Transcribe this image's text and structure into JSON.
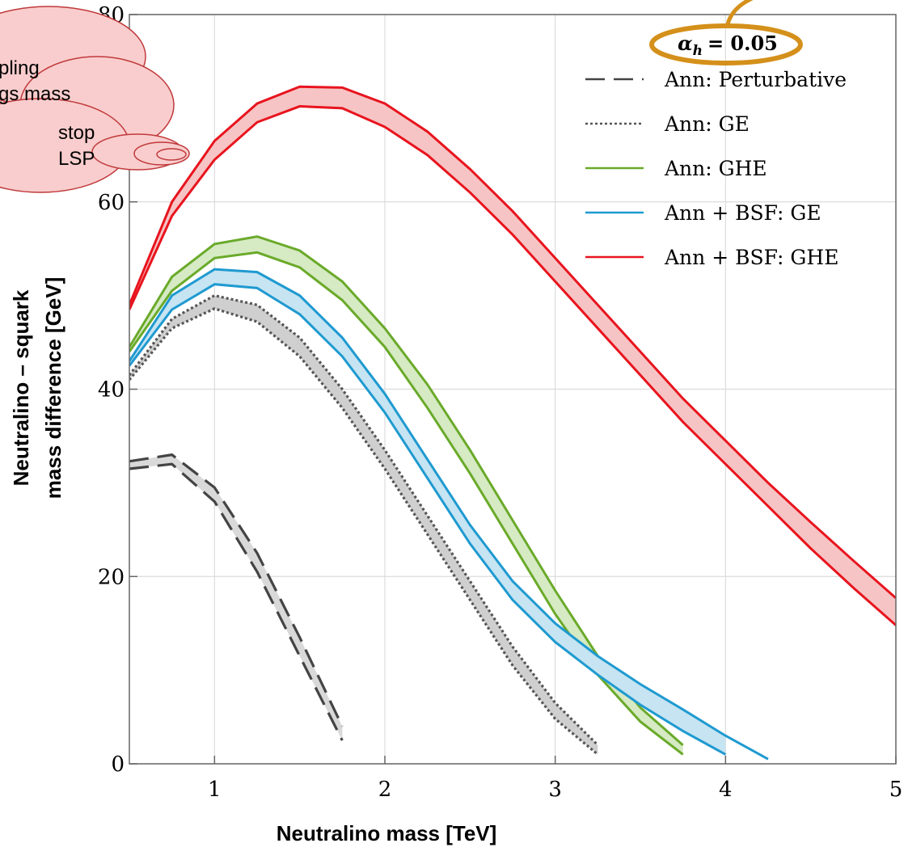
{
  "chart_data": {
    "type": "band",
    "xlabel": "Neutralino mass [TeV]",
    "ylabel": [
      "Neutralino – squark",
      "mass difference [GeV]"
    ],
    "annotation": {
      "symbol": "α",
      "subscript": "h",
      "text": "= 0.05"
    },
    "callout": [
      "pling",
      "gs mass",
      "stop",
      "LSP"
    ],
    "xlim": [
      0.5,
      5
    ],
    "ylim": [
      0,
      80
    ],
    "xticks": [
      1,
      2,
      3,
      4,
      5
    ],
    "yticks": [
      0,
      20,
      40,
      60,
      80
    ],
    "grid": true,
    "legend": "upper right",
    "x": [
      0.5,
      0.75,
      1,
      1.25,
      1.5,
      1.75,
      2,
      2.25,
      2.5,
      2.75,
      3,
      3.25,
      3.5,
      3.75,
      4,
      4.25,
      4.5,
      4.75,
      5
    ],
    "series": [
      {
        "name": "Ann: Perturbative",
        "color": "#444444",
        "fill": "#d9d9d9",
        "style": "dashed",
        "upper": [
          32.3,
          33,
          29.5,
          22.5,
          13.5,
          4,
          null,
          null,
          null,
          null,
          null,
          null,
          null,
          null,
          null,
          null,
          null,
          null,
          null
        ],
        "lower": [
          31.5,
          32,
          28,
          20.5,
          11.5,
          2.5,
          null,
          null,
          null,
          null,
          null,
          null,
          null,
          null,
          null,
          null,
          null,
          null,
          null
        ]
      },
      {
        "name": "Ann: GE",
        "color": "#555555",
        "fill": "#cfcfcf",
        "style": "dotted",
        "upper": [
          41.5,
          47.5,
          50,
          49,
          45.5,
          40,
          33.5,
          26.5,
          19.5,
          12.5,
          6.5,
          2,
          null,
          null,
          null,
          null,
          null,
          null,
          null
        ],
        "lower": [
          41,
          46.5,
          48.6,
          47.2,
          43.5,
          38,
          31.5,
          24.5,
          17.5,
          10.5,
          4.8,
          1,
          null,
          null,
          null,
          null,
          null,
          null,
          null
        ]
      },
      {
        "name": "Ann: GHE",
        "color": "#6aaa2a",
        "fill": "#d6eac4",
        "style": "solid",
        "upper": [
          44.5,
          52,
          55.5,
          56.3,
          54.8,
          51.5,
          46.5,
          40.5,
          33.5,
          26,
          18.5,
          11.5,
          6,
          2,
          null,
          null,
          null,
          null,
          null
        ],
        "lower": [
          44,
          50.5,
          54,
          54.6,
          53,
          49.5,
          44.5,
          38,
          31,
          23.5,
          16,
          9.5,
          4.5,
          1,
          null,
          null,
          null,
          null,
          null
        ]
      },
      {
        "name": "Ann + BSF: GE",
        "color": "#1f9ad0",
        "fill": "#c6e4f2",
        "style": "solid",
        "upper": [
          43,
          50,
          52.8,
          52.5,
          50,
          45.5,
          39.5,
          32.5,
          25.5,
          19.5,
          15,
          11.5,
          8.5,
          5.8,
          3,
          0.5,
          null,
          null,
          null
        ],
        "lower": [
          42.5,
          48.5,
          51.2,
          50.8,
          48,
          43.5,
          37.5,
          30.5,
          23.5,
          17.5,
          13,
          9.5,
          6.3,
          3.5,
          1,
          null,
          null,
          null,
          null
        ]
      },
      {
        "name": "Ann + BSF: GHE",
        "color": "#e8141e",
        "fill": "#f6c4c4",
        "style": "solid",
        "upper": [
          49,
          60,
          66.5,
          70.5,
          72.3,
          72.2,
          70.5,
          67.5,
          63.5,
          59,
          54,
          49,
          44,
          39,
          34.5,
          30,
          25.8,
          21.7,
          17.7
        ],
        "lower": [
          48.5,
          58.5,
          64.5,
          68.5,
          70.2,
          70,
          68,
          65,
          61,
          56.5,
          51.5,
          46.5,
          41.5,
          36.5,
          32,
          27.5,
          23,
          18.8,
          14.8
        ]
      }
    ]
  }
}
